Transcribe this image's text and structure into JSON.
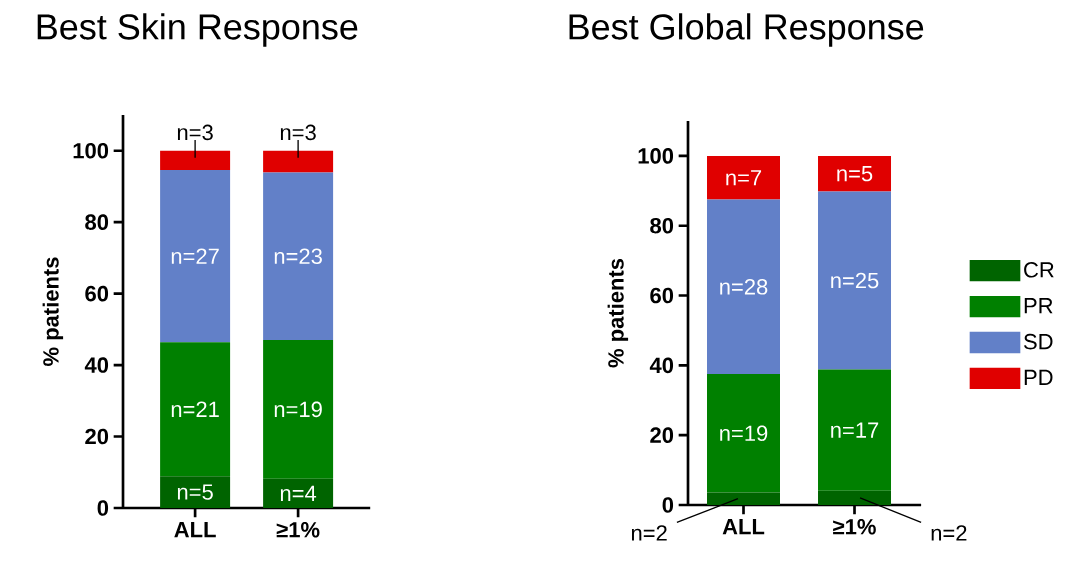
{
  "chart_data": [
    {
      "type": "bar",
      "title": "Best Skin Response",
      "ylabel": "% patients",
      "categories": [
        "ALL",
        "≥1%"
      ],
      "stacked": true,
      "ylim": [
        0,
        110
      ],
      "yticks": [
        0,
        20,
        40,
        60,
        80,
        100
      ],
      "legend": false,
      "series": [
        {
          "color": "#006400",
          "values": [
            8.9,
            8.2
          ]
        },
        {
          "color": "#008000",
          "values": [
            37.5,
            38.8
          ]
        },
        {
          "color": "#6280c8",
          "values": [
            48.2,
            46.9
          ]
        },
        {
          "color": "#e00000",
          "values": [
            5.4,
            6.1
          ]
        }
      ],
      "annotations": [
        "n=5",
        "n=4",
        "n=21",
        "n=19",
        "n=27",
        "n=23",
        "n=3",
        "n=3"
      ]
    },
    {
      "type": "bar",
      "title": "Best Global Response",
      "ylabel": "% patients",
      "categories": [
        "ALL",
        "≥1%"
      ],
      "stacked": true,
      "ylim": [
        0,
        110
      ],
      "yticks": [
        0,
        20,
        40,
        60,
        80,
        100
      ],
      "legend": "right",
      "series": [
        {
          "name": "CR",
          "color": "#006400",
          "values": [
            3.6,
            4.1
          ]
        },
        {
          "name": "PR",
          "color": "#008000",
          "values": [
            33.9,
            34.7
          ]
        },
        {
          "name": "SD",
          "color": "#6280c8",
          "values": [
            50.0,
            51.0
          ]
        },
        {
          "name": "PD",
          "color": "#e00000",
          "values": [
            12.5,
            10.2
          ]
        }
      ],
      "annotations": [
        "n=2",
        "n=2",
        "n=19",
        "n=17",
        "n=28",
        "n=25",
        "n=7",
        "n=5"
      ]
    }
  ]
}
